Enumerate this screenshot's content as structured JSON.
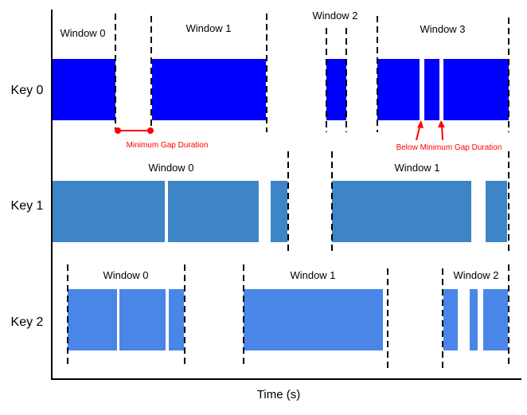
{
  "axis": {
    "xlabel": "Time (s)"
  },
  "colors": {
    "key0": "#0000ff",
    "key1": "#3d85c6",
    "key2": "#4a86e8",
    "annotation": "#ff0000",
    "window_boundary": "#000000"
  },
  "rows": [
    {
      "label": "Key 0",
      "windows": [
        "Window 0",
        "Window 1",
        "Window 2",
        "Window 3"
      ]
    },
    {
      "label": "Key 1",
      "windows": [
        "Window 0",
        "Window 1"
      ]
    },
    {
      "label": "Key 2",
      "windows": [
        "Window 0",
        "Window 1",
        "Window 2"
      ]
    }
  ],
  "annotations": {
    "min_gap": "Minimum Gap Duration",
    "below_min_gap": "Below Minimum Gap Duration"
  }
}
